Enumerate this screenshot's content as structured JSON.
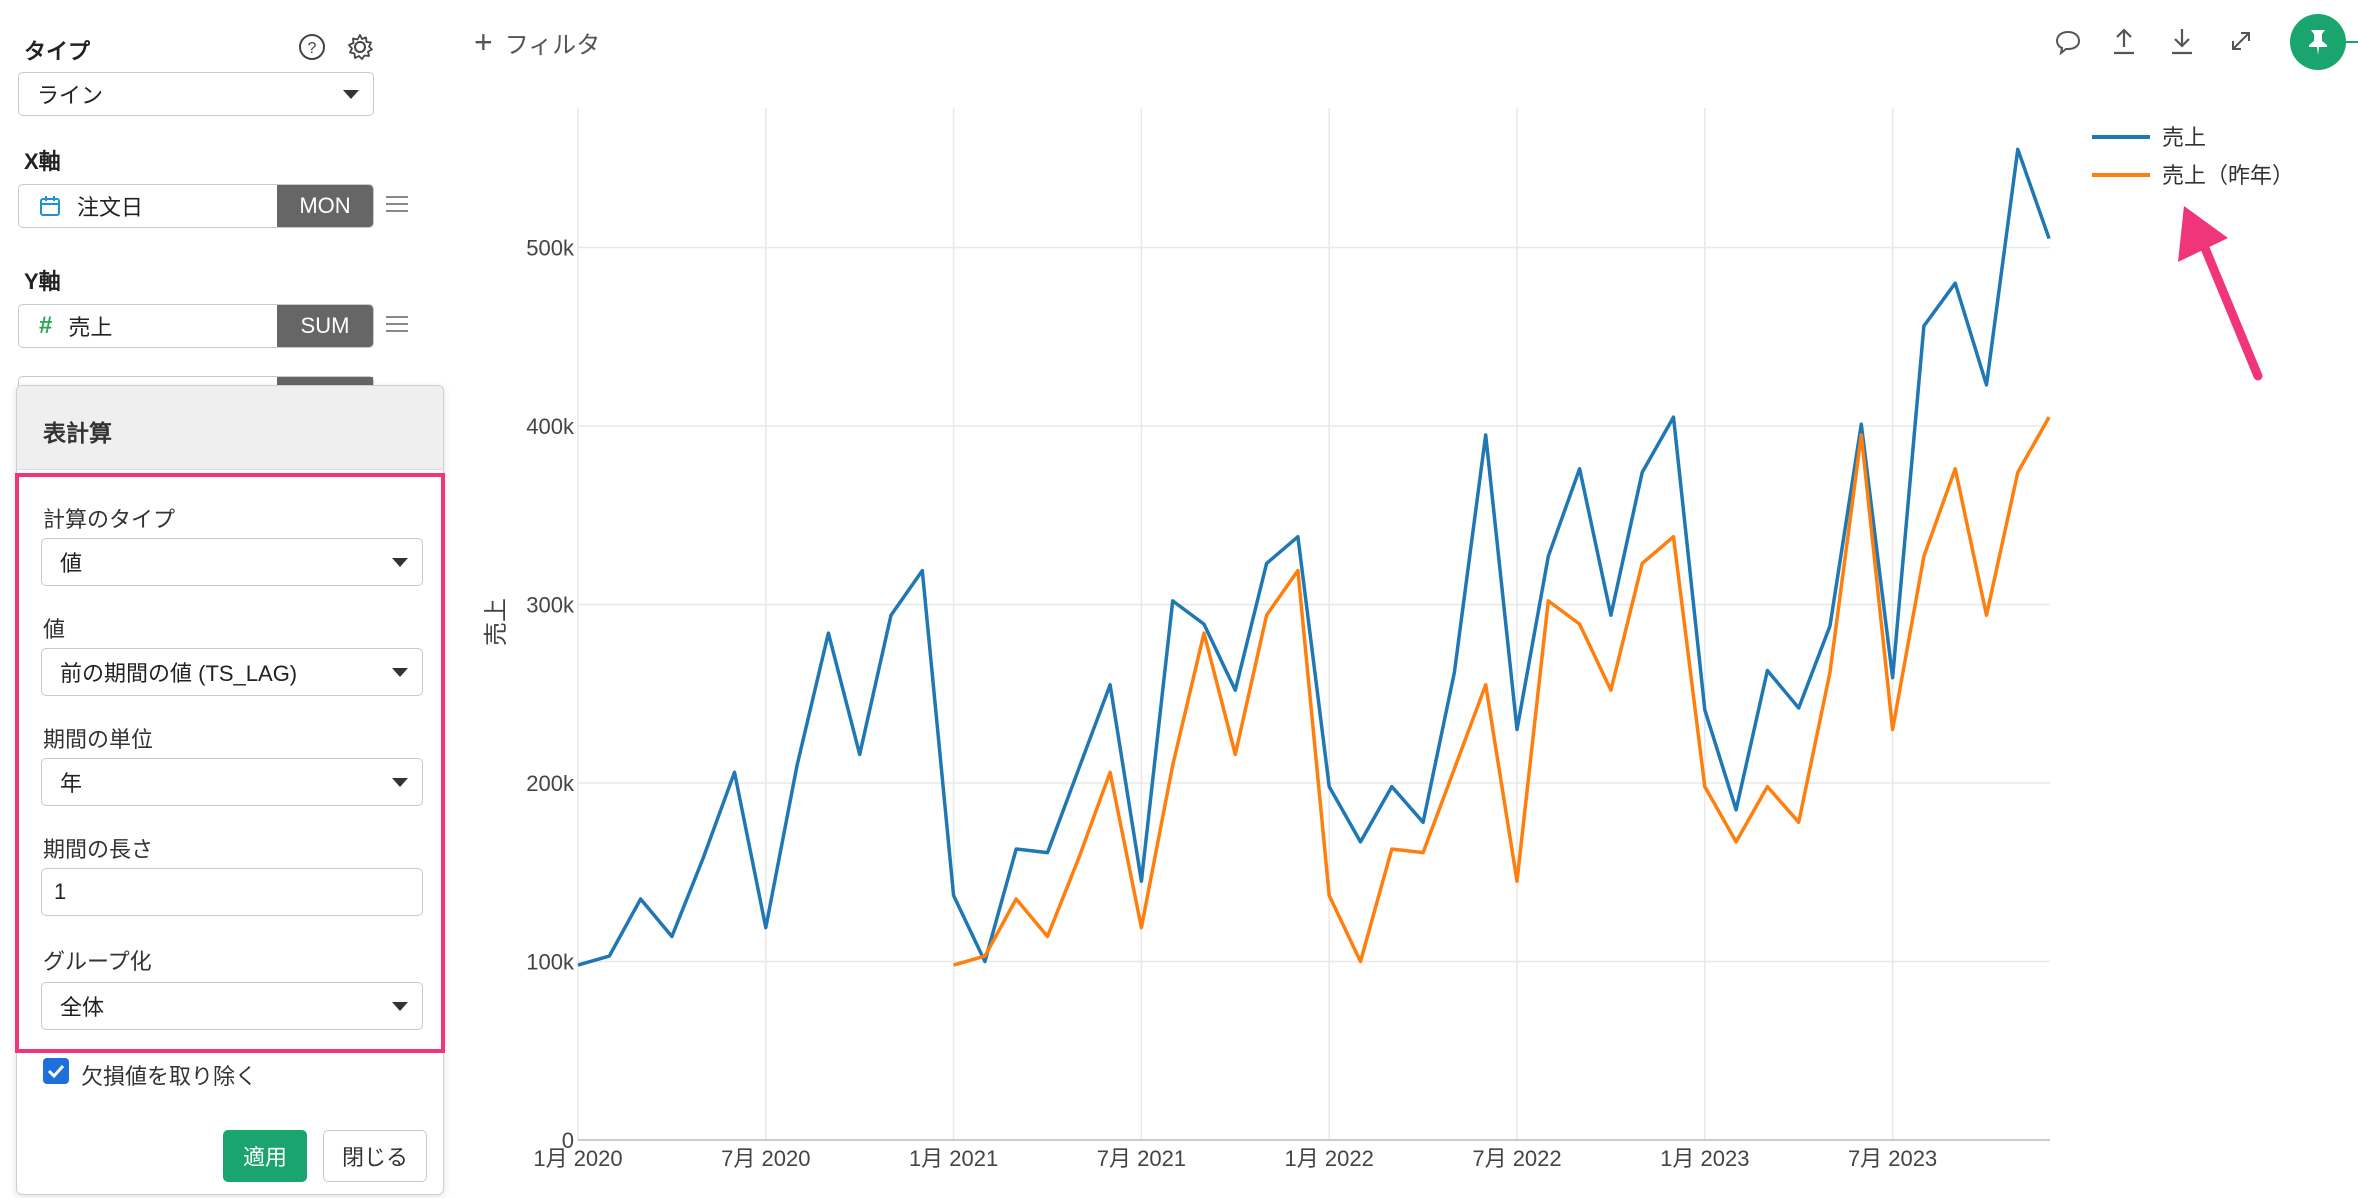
{
  "sidebar": {
    "type_label": "タイプ",
    "type_value": "ライン",
    "x_label": "X軸",
    "x_field": "注文日",
    "x_agg": "MON",
    "y_label": "Y軸",
    "y_field": "売上",
    "y_agg": "SUM"
  },
  "popover": {
    "title": "表計算",
    "calc_type_label": "計算のタイプ",
    "calc_type_value": "値",
    "value_label": "値",
    "value_value": "前の期間の値 (TS_LAG)",
    "period_unit_label": "期間の単位",
    "period_unit_value": "年",
    "period_length_label": "期間の長さ",
    "period_length_value": "1",
    "grouping_label": "グループ化",
    "grouping_value": "全体",
    "remove_missing_label": "欠損値を取り除く",
    "remove_missing_checked": true,
    "apply_label": "適用",
    "close_label": "閉じる"
  },
  "toolbar": {
    "filter_label": "フィルタ",
    "icons": [
      "comment-icon",
      "upload-icon",
      "download-icon",
      "expand-icon",
      "pin-icon"
    ]
  },
  "colors": {
    "series_current": "#1f77b4",
    "series_prev": "#ff7f0e",
    "accent_green": "#1aa56e",
    "highlight": "#f0357a"
  },
  "chart_data": {
    "type": "line",
    "ylabel": "売上",
    "xlabel": "",
    "ylim": [
      0,
      570000
    ],
    "y_ticks": [
      "0",
      "100k",
      "200k",
      "300k",
      "400k",
      "500k"
    ],
    "x_ticks": [
      "1月 2020",
      "7月 2020",
      "1月 2021",
      "7月 2021",
      "1月 2022",
      "7月 2022",
      "1月 2023",
      "7月 2023"
    ],
    "grid": true,
    "legend_position": "top-right",
    "series": [
      {
        "name": "売上",
        "color": "#1f77b4",
        "start_month": "2020-01",
        "values": [
          98000,
          103000,
          135000,
          114000,
          158000,
          206000,
          119000,
          210000,
          284000,
          216000,
          294000,
          319000,
          137000,
          100000,
          163000,
          161000,
          208000,
          255000,
          145000,
          302000,
          289000,
          252000,
          323000,
          338000,
          198000,
          167000,
          198000,
          178000,
          262000,
          395000,
          230000,
          327000,
          376000,
          294000,
          374000,
          405000,
          241000,
          185000,
          263000,
          242000,
          288000,
          401000,
          259000,
          456000,
          480000,
          423000,
          555000,
          505000
        ]
      },
      {
        "name": "売上（昨年）",
        "color": "#ff7f0e",
        "start_month": "2021-01",
        "values": [
          98000,
          103000,
          135000,
          114000,
          158000,
          206000,
          119000,
          210000,
          284000,
          216000,
          294000,
          319000,
          137000,
          100000,
          163000,
          161000,
          208000,
          255000,
          145000,
          302000,
          289000,
          252000,
          323000,
          338000,
          198000,
          167000,
          198000,
          178000,
          262000,
          395000,
          230000,
          327000,
          376000,
          294000,
          374000,
          405000
        ]
      }
    ]
  }
}
